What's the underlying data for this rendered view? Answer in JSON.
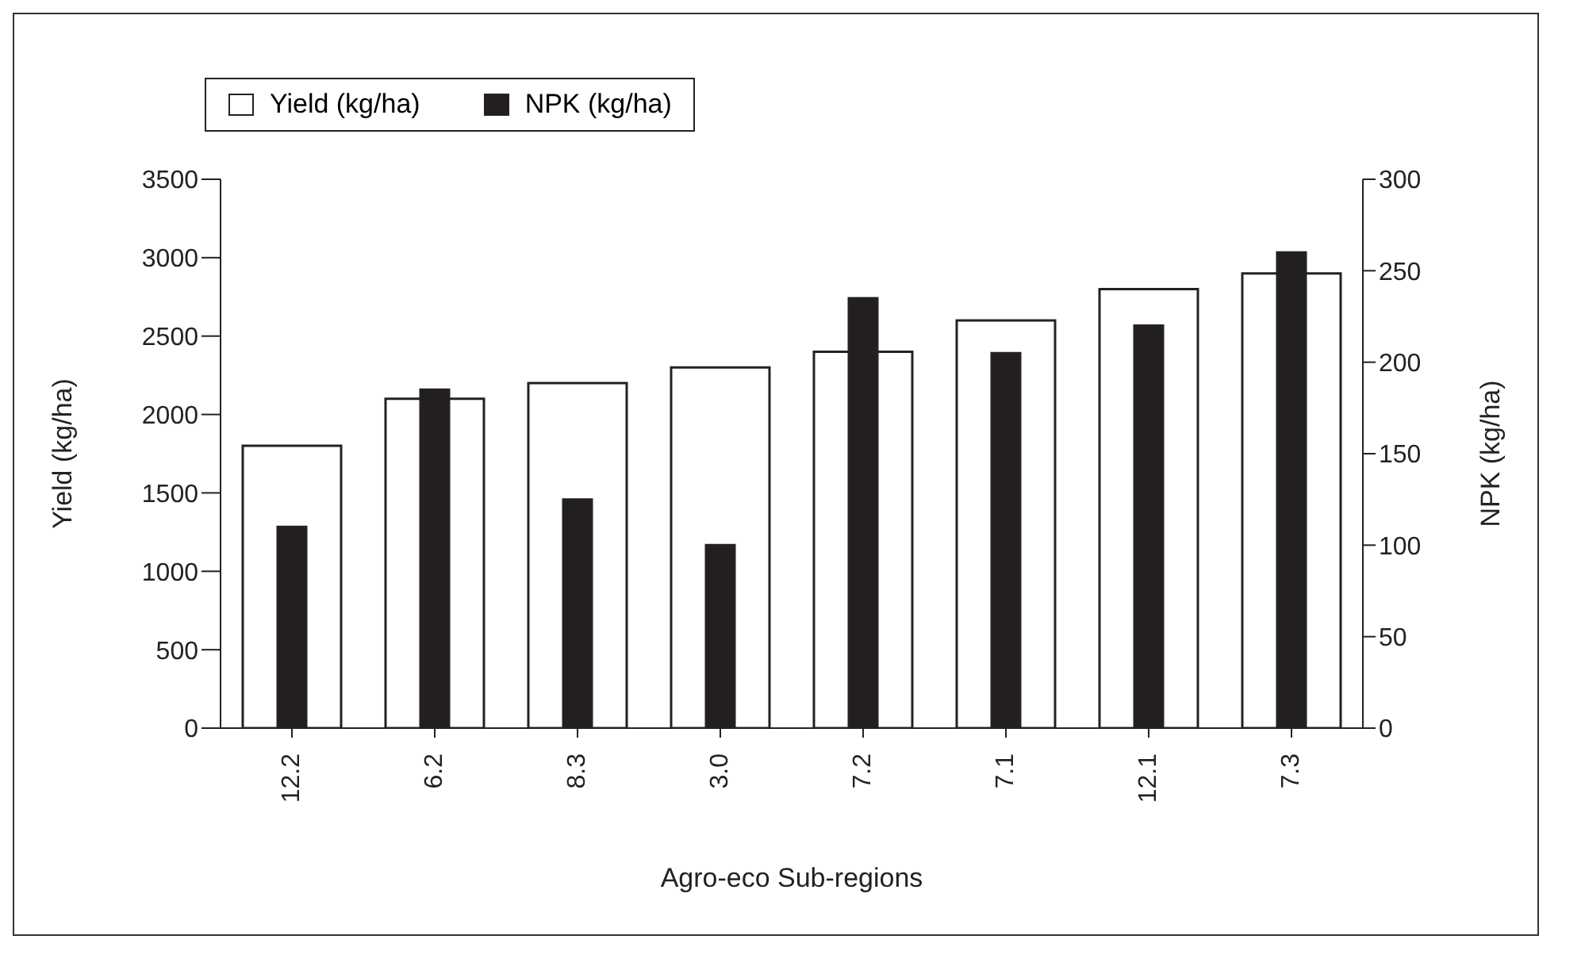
{
  "chart_data": {
    "type": "bar",
    "xlabel": "Agro-eco Sub-regions",
    "ylabel": "Yield (kg/ha)",
    "y2label": "NPK (kg/ha)",
    "categories": [
      "12.2",
      "6.2",
      "8.3",
      "3.0",
      "7.2",
      "7.1",
      "12.1",
      "7.3"
    ],
    "series": [
      {
        "name": "Yield (kg/ha)",
        "color": "#ffffff",
        "values": [
          1800,
          2100,
          2200,
          2300,
          2400,
          2600,
          2800,
          2900
        ]
      },
      {
        "name": "NPK (kg/ha)",
        "color": "#231f20",
        "axis": "y2",
        "values": [
          110,
          185,
          125,
          100,
          235,
          205,
          220,
          260
        ]
      }
    ],
    "ylim": [
      0,
      3500
    ],
    "yticks": [
      0,
      500,
      1000,
      1500,
      2000,
      2500,
      3000,
      3500
    ],
    "y2lim": [
      0,
      300
    ],
    "y2ticks": [
      0,
      50,
      100,
      150,
      200,
      250,
      300
    ],
    "grid": false,
    "legend": "top left"
  }
}
